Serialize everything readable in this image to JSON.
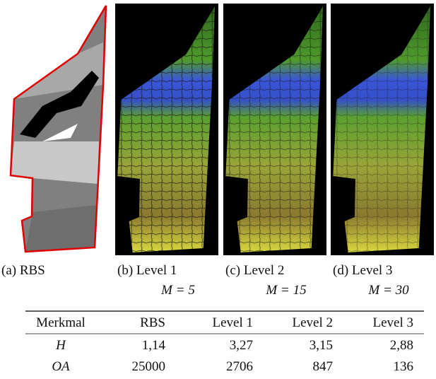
{
  "panels": [
    {
      "label": "(a) RBS"
    },
    {
      "label": "(b) Level 1",
      "param": "M = 5"
    },
    {
      "label": "(c) Level 2",
      "param": "M = 15"
    },
    {
      "label": "(d) Level 3",
      "param": "M = 30"
    }
  ],
  "table": {
    "header": [
      "Merkmal",
      "RBS",
      "Level 1",
      "Level 2",
      "Level 3"
    ],
    "rows": [
      [
        "H",
        "1,14",
        "3,27",
        "3,15",
        "2,88"
      ],
      [
        "OA",
        "25000",
        "2706",
        "847",
        "136"
      ]
    ]
  }
}
